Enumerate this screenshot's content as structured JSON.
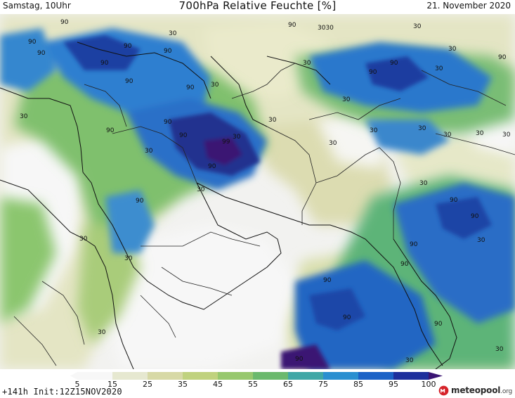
{
  "header": {
    "day_time": "Samstag, 10Uhr",
    "title": "700hPa Relative Feuchte [%]",
    "date": "21. November 2020"
  },
  "footer": {
    "run_info": "+141h Init:12Z15NOV2020"
  },
  "colorbar": {
    "ticks": [
      "5",
      "15",
      "25",
      "35",
      "45",
      "55",
      "65",
      "75",
      "85",
      "95",
      "100"
    ],
    "colors": [
      "#f7f7f7",
      "#e6e8d0",
      "#d7d9a6",
      "#c0d27e",
      "#97c86e",
      "#6bb96d",
      "#3fa7a6",
      "#2a8fd0",
      "#1c62c6",
      "#1e2f9c",
      "#3a1473"
    ]
  },
  "map": {
    "contour_labels": [
      {
        "text": "90"
      },
      {
        "text": "90"
      },
      {
        "text": "90"
      },
      {
        "text": "90"
      },
      {
        "text": "90"
      },
      {
        "text": "90"
      },
      {
        "text": "90"
      },
      {
        "text": "30"
      },
      {
        "text": "30"
      },
      {
        "text": "90"
      },
      {
        "text": "90"
      },
      {
        "text": "90"
      },
      {
        "text": "90"
      },
      {
        "text": "30"
      },
      {
        "text": "99"
      },
      {
        "text": "90"
      },
      {
        "text": "30"
      },
      {
        "text": "30"
      },
      {
        "text": "90"
      },
      {
        "text": "30"
      },
      {
        "text": "3030"
      },
      {
        "text": "90"
      },
      {
        "text": "30"
      },
      {
        "text": "30"
      },
      {
        "text": "30"
      },
      {
        "text": "90"
      },
      {
        "text": "30"
      },
      {
        "text": "30"
      },
      {
        "text": "90"
      },
      {
        "text": "30"
      },
      {
        "text": "30"
      },
      {
        "text": "30"
      },
      {
        "text": "30"
      },
      {
        "text": "90"
      },
      {
        "text": "90"
      },
      {
        "text": "30"
      },
      {
        "text": "90"
      },
      {
        "text": "90"
      },
      {
        "text": "90"
      },
      {
        "text": "90"
      },
      {
        "text": "90"
      },
      {
        "text": "30"
      },
      {
        "text": "30"
      },
      {
        "text": "30"
      },
      {
        "text": "30"
      },
      {
        "text": "90"
      },
      {
        "text": "30"
      },
      {
        "text": "30"
      },
      {
        "text": "30"
      },
      {
        "text": "90"
      },
      {
        "text": "30"
      },
      {
        "text": "30"
      }
    ]
  },
  "logo": {
    "brand": "meteopool",
    "tld": ".org",
    "icon": "meteopool-logo-icon"
  }
}
